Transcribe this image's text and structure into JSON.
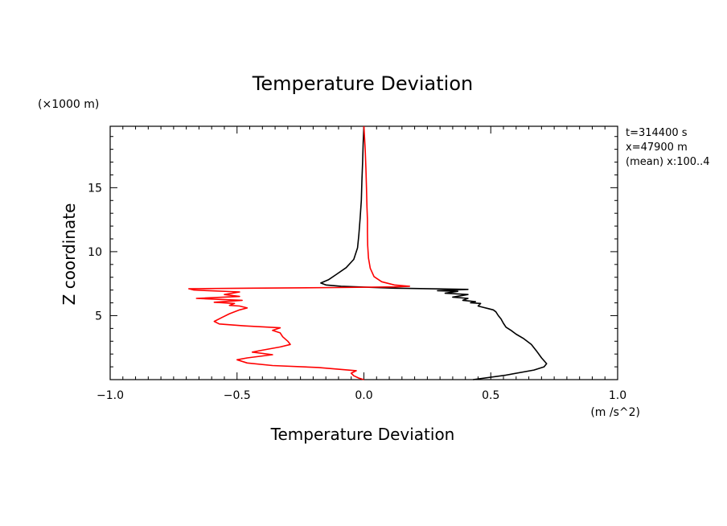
{
  "chart_data": {
    "type": "line",
    "title": "Temperature Deviation",
    "xlabel": "Temperature Deviation",
    "xunits": "(m /s^2)",
    "ylabel": "Z coordinate",
    "yunits": "(×1000 m)",
    "xlim": [
      -1.0,
      1.0
    ],
    "ylim": [
      0,
      19.8
    ],
    "xticks": [
      -1.0,
      -0.5,
      0.0,
      0.5,
      1.0
    ],
    "xtick_labels": [
      "−1.0",
      "−0.5",
      "0.0",
      "0.5",
      "1.0"
    ],
    "yticks": [
      5,
      10,
      15
    ],
    "ytick_labels": [
      "5",
      "10",
      "15"
    ],
    "annotations": [
      "t=314400 s",
      "x=47900 m",
      "(mean) x:100..4"
    ],
    "series": [
      {
        "name": "black profile",
        "color": "#000000",
        "points": [
          [
            0.43,
            0.0
          ],
          [
            0.56,
            0.35
          ],
          [
            0.67,
            0.75
          ],
          [
            0.71,
            1.0
          ],
          [
            0.72,
            1.25
          ],
          [
            0.7,
            1.7
          ],
          [
            0.68,
            2.25
          ],
          [
            0.66,
            2.75
          ],
          [
            0.63,
            3.2
          ],
          [
            0.6,
            3.55
          ],
          [
            0.58,
            3.85
          ],
          [
            0.56,
            4.1
          ],
          [
            0.55,
            4.4
          ],
          [
            0.54,
            4.75
          ],
          [
            0.53,
            5.0
          ],
          [
            0.52,
            5.3
          ],
          [
            0.51,
            5.45
          ],
          [
            0.49,
            5.55
          ],
          [
            0.47,
            5.65
          ],
          [
            0.45,
            5.75
          ],
          [
            0.46,
            5.95
          ],
          [
            0.42,
            6.0
          ],
          [
            0.44,
            6.1
          ],
          [
            0.39,
            6.2
          ],
          [
            0.41,
            6.35
          ],
          [
            0.35,
            6.45
          ],
          [
            0.41,
            6.65
          ],
          [
            0.32,
            6.75
          ],
          [
            0.37,
            6.9
          ],
          [
            0.29,
            6.95
          ],
          [
            0.41,
            7.05
          ],
          [
            0.12,
            7.15
          ],
          [
            -0.09,
            7.3
          ],
          [
            -0.15,
            7.4
          ],
          [
            -0.17,
            7.55
          ],
          [
            -0.14,
            7.8
          ],
          [
            -0.11,
            8.2
          ],
          [
            -0.07,
            8.75
          ],
          [
            -0.04,
            9.4
          ],
          [
            -0.025,
            10.3
          ],
          [
            -0.02,
            11.3
          ],
          [
            -0.015,
            12.6
          ],
          [
            -0.01,
            14.0
          ],
          [
            -0.008,
            15.5
          ],
          [
            -0.005,
            17.0
          ],
          [
            -0.003,
            18.5
          ],
          [
            0.0,
            19.8
          ]
        ]
      },
      {
        "name": "red profile",
        "color": "#ff0000",
        "points": [
          [
            0.0,
            0.0
          ],
          [
            -0.02,
            0.12
          ],
          [
            -0.04,
            0.3
          ],
          [
            -0.05,
            0.5
          ],
          [
            -0.03,
            0.7
          ],
          [
            -0.18,
            0.95
          ],
          [
            -0.36,
            1.1
          ],
          [
            -0.46,
            1.3
          ],
          [
            -0.5,
            1.55
          ],
          [
            -0.46,
            1.7
          ],
          [
            -0.36,
            1.95
          ],
          [
            -0.44,
            2.15
          ],
          [
            -0.4,
            2.3
          ],
          [
            -0.33,
            2.55
          ],
          [
            -0.29,
            2.75
          ],
          [
            -0.3,
            3.0
          ],
          [
            -0.32,
            3.35
          ],
          [
            -0.33,
            3.65
          ],
          [
            -0.36,
            3.85
          ],
          [
            -0.33,
            4.05
          ],
          [
            -0.47,
            4.2
          ],
          [
            -0.57,
            4.35
          ],
          [
            -0.59,
            4.55
          ],
          [
            -0.56,
            4.85
          ],
          [
            -0.53,
            5.15
          ],
          [
            -0.49,
            5.45
          ],
          [
            -0.46,
            5.6
          ],
          [
            -0.49,
            5.75
          ],
          [
            -0.53,
            5.8
          ],
          [
            -0.51,
            5.95
          ],
          [
            -0.59,
            6.05
          ],
          [
            -0.48,
            6.2
          ],
          [
            -0.66,
            6.35
          ],
          [
            -0.49,
            6.5
          ],
          [
            -0.55,
            6.65
          ],
          [
            -0.49,
            6.85
          ],
          [
            -0.67,
            7.0
          ],
          [
            -0.69,
            7.1
          ],
          [
            -0.45,
            7.15
          ],
          [
            -0.1,
            7.2
          ],
          [
            0.12,
            7.25
          ],
          [
            0.18,
            7.3
          ],
          [
            0.12,
            7.4
          ],
          [
            0.07,
            7.65
          ],
          [
            0.04,
            8.05
          ],
          [
            0.025,
            8.7
          ],
          [
            0.018,
            9.5
          ],
          [
            0.015,
            10.5
          ],
          [
            0.014,
            11.5
          ],
          [
            0.014,
            12.5
          ],
          [
            0.012,
            13.5
          ],
          [
            0.01,
            15.0
          ],
          [
            0.008,
            16.5
          ],
          [
            0.005,
            18.0
          ],
          [
            0.0,
            19.8
          ]
        ]
      }
    ]
  }
}
